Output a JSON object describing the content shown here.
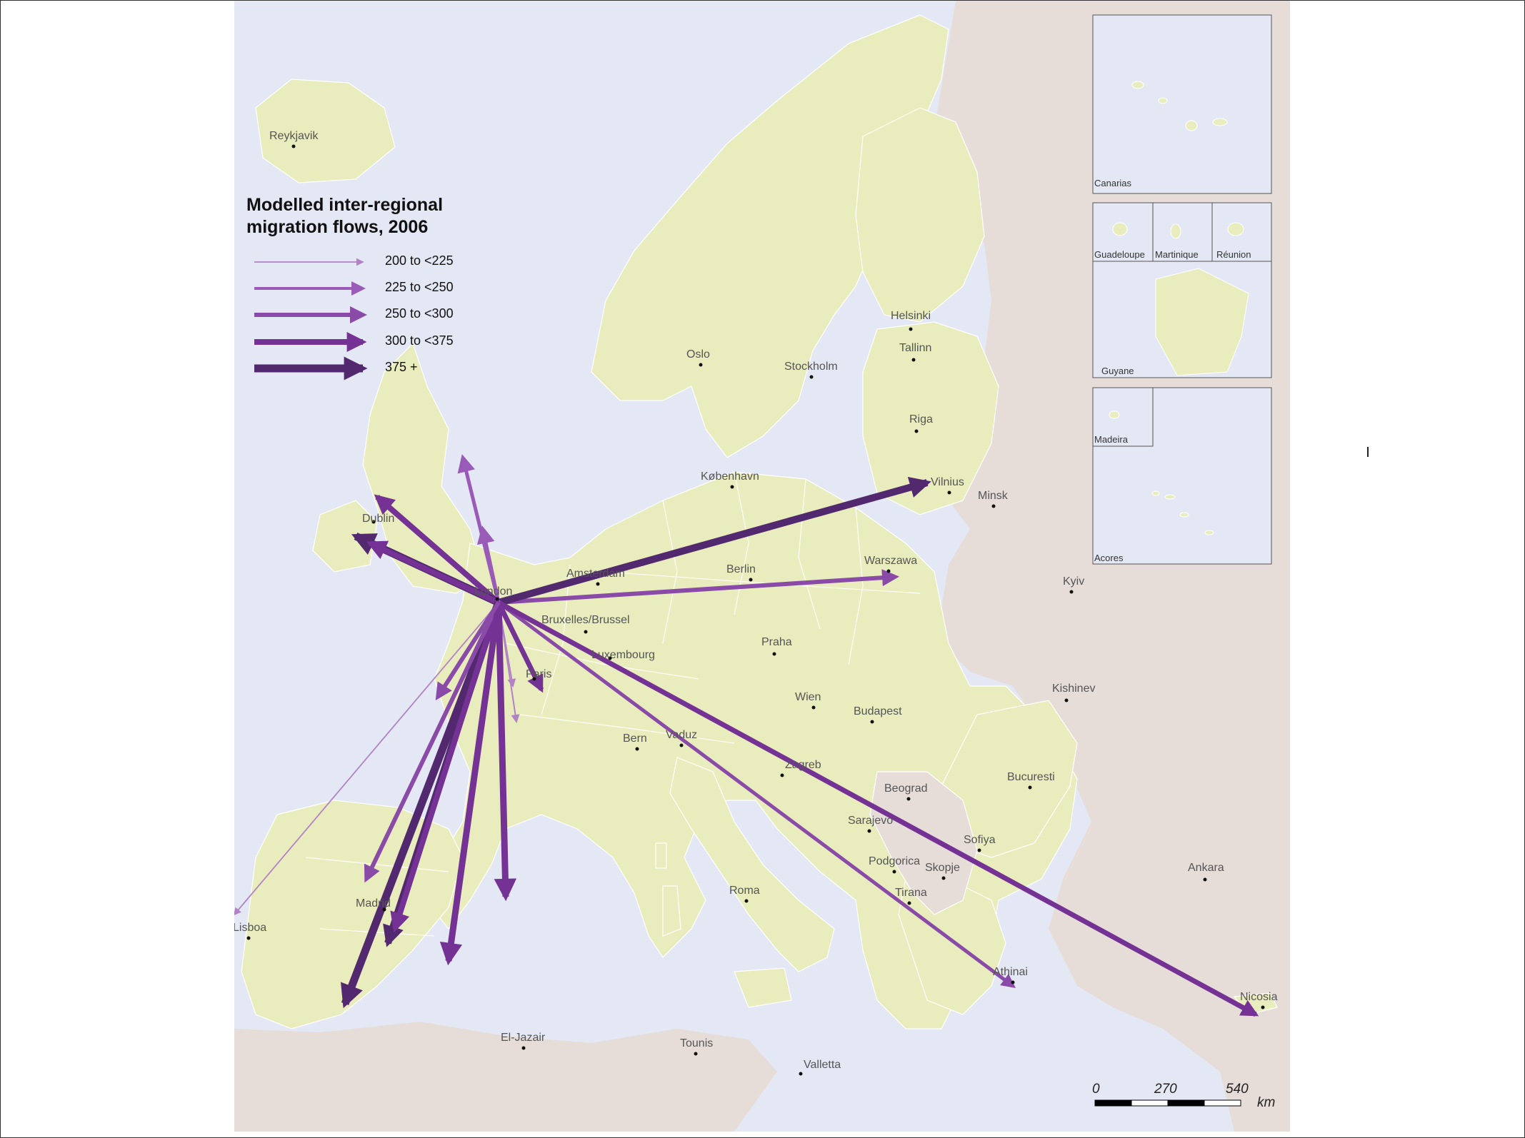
{
  "legend": {
    "title_line1": "Modelled inter-regional",
    "title_line2": "migration flows, 2006",
    "classes": [
      {
        "label": "200 to <225",
        "color": "#b282c6"
      },
      {
        "label": "225 to <250",
        "color": "#9a5ab8"
      },
      {
        "label": "250 to <300",
        "color": "#8a4aa8"
      },
      {
        "label": "300 to <375",
        "color": "#753295"
      },
      {
        "label": "375 +",
        "color": "#52286f"
      }
    ]
  },
  "cities": [
    {
      "name": "Reykjavik"
    },
    {
      "name": "Helsinki"
    },
    {
      "name": "Tallinn"
    },
    {
      "name": "Oslo"
    },
    {
      "name": "Stockholm"
    },
    {
      "name": "Riga"
    },
    {
      "name": "København"
    },
    {
      "name": "Vilnius"
    },
    {
      "name": "Minsk"
    },
    {
      "name": "Dublin"
    },
    {
      "name": "Amsterdam"
    },
    {
      "name": "Berlin"
    },
    {
      "name": "Warszawa"
    },
    {
      "name": "Kyiv"
    },
    {
      "name": "London"
    },
    {
      "name": "Bruxelles/Brussel"
    },
    {
      "name": "Luxembourg"
    },
    {
      "name": "Praha"
    },
    {
      "name": "Paris"
    },
    {
      "name": "Kishinev"
    },
    {
      "name": "Wien"
    },
    {
      "name": "Budapest"
    },
    {
      "name": "Bern"
    },
    {
      "name": "Vaduz"
    },
    {
      "name": "Zagreb"
    },
    {
      "name": "Beograd"
    },
    {
      "name": "Bucuresti"
    },
    {
      "name": "Sarajevo"
    },
    {
      "name": "Sofiya"
    },
    {
      "name": "Podgorica"
    },
    {
      "name": "Skopje"
    },
    {
      "name": "Ankara"
    },
    {
      "name": "Roma"
    },
    {
      "name": "Tirana"
    },
    {
      "name": "Madrid"
    },
    {
      "name": "Lisboa"
    },
    {
      "name": "Athinai"
    },
    {
      "name": "Nicosia"
    },
    {
      "name": "El-Jazair"
    },
    {
      "name": "Tounis"
    },
    {
      "name": "Valletta"
    }
  ],
  "insets": [
    {
      "name": "Canarias"
    },
    {
      "name": "Guadeloupe"
    },
    {
      "name": "Martinique"
    },
    {
      "name": "Réunion"
    },
    {
      "name": "Guyane"
    },
    {
      "name": "Madeira"
    },
    {
      "name": "Acores"
    }
  ],
  "flows": [
    {
      "to": "Vilnius",
      "cls": 4
    },
    {
      "to": "Warszawa",
      "cls": 2
    },
    {
      "to": "Nicosia",
      "cls": 3
    },
    {
      "to": "Athinai",
      "cls": 2
    },
    {
      "to": "Dublin",
      "cls": 4
    },
    {
      "to": "Scotland",
      "cls": 3
    },
    {
      "to": "Spain",
      "cls": 4
    },
    {
      "to": "Madrid",
      "cls": 3
    },
    {
      "to": "France",
      "cls": 2
    },
    {
      "to": "Portugal",
      "cls": 0
    }
  ],
  "scale_bar": {
    "ticks": [
      "0",
      "270",
      "540"
    ],
    "unit": "km"
  },
  "colors": {
    "sea": "#e3e8f4",
    "eu_land": "#e9edbd",
    "non_eu_land": "#e6ddd8",
    "border": "#ffffff"
  }
}
